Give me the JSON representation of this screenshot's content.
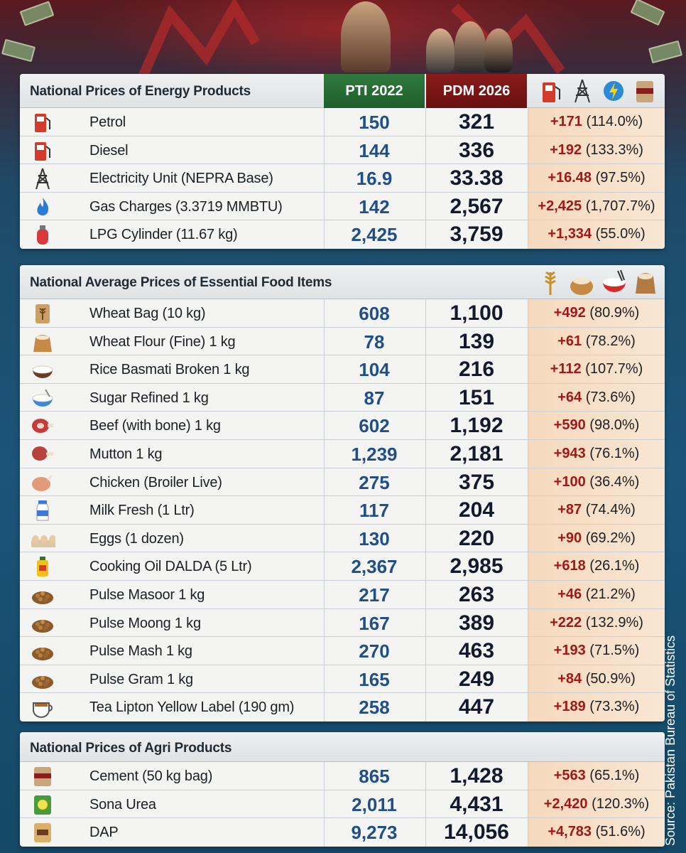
{
  "columns": {
    "pti": "PTI 2022",
    "pdm": "PDM 2026"
  },
  "energy": {
    "title": "National Prices of Energy Products",
    "header_icons": [
      "fuel-pump-icon",
      "power-tower-icon",
      "lightning-icon",
      "cement-bag-icon"
    ],
    "rows": [
      {
        "icon": "fuel-pump-icon",
        "name": "Petrol",
        "v2022": "150",
        "v2026": "321",
        "abs": "+171",
        "pct": "(114.0%)"
      },
      {
        "icon": "fuel-pump-icon",
        "name": "Diesel",
        "v2022": "144",
        "v2026": "336",
        "abs": "+192",
        "pct": "(133.3%)"
      },
      {
        "icon": "power-tower-icon",
        "name": "Electricity Unit (NEPRA Base)",
        "v2022": "16.9",
        "v2026": "33.38",
        "abs": "+16.48",
        "pct": "(97.5%)"
      },
      {
        "icon": "gas-flame-icon",
        "name": "Gas Charges (3.3719 MMBTU)",
        "v2022": "142",
        "v2026": "2,567",
        "abs": "+2,425",
        "pct": "(1,707.7%)"
      },
      {
        "icon": "lpg-cylinder-icon",
        "name": "LPG Cylinder (11.67 kg)",
        "v2022": "2,425",
        "v2026": "3,759",
        "abs": "+1,334",
        "pct": "(55.0%)"
      }
    ]
  },
  "food": {
    "title": "National Average Prices of Essential Food Items",
    "header_icons": [
      "wheat-icon",
      "flour-sack-icon",
      "rice-bowl-icon",
      "grain-sack-icon"
    ],
    "rows": [
      {
        "icon": "wheat-bag-icon",
        "name": "Wheat Bag (10 kg)",
        "v2022": "608",
        "v2026": "1,100",
        "abs": "+492",
        "pct": "(80.9%)"
      },
      {
        "icon": "flour-sack-icon",
        "name": "Wheat Flour (Fine) 1 kg",
        "v2022": "78",
        "v2026": "139",
        "abs": "+61",
        "pct": "(78.2%)"
      },
      {
        "icon": "rice-bowl-icon",
        "name": "Rice Basmati Broken 1 kg",
        "v2022": "104",
        "v2026": "216",
        "abs": "+112",
        "pct": "(107.7%)"
      },
      {
        "icon": "sugar-bowl-icon",
        "name": "Sugar Refined 1 kg",
        "v2022": "87",
        "v2026": "151",
        "abs": "+64",
        "pct": "(73.6%)"
      },
      {
        "icon": "beef-icon",
        "name": "Beef (with bone) 1 kg",
        "v2022": "602",
        "v2026": "1,192",
        "abs": "+590",
        "pct": "(98.0%)"
      },
      {
        "icon": "mutton-icon",
        "name": "Mutton 1 kg",
        "v2022": "1,239",
        "v2026": "2,181",
        "abs": "+943",
        "pct": "(76.1%)"
      },
      {
        "icon": "chicken-icon",
        "name": "Chicken (Broiler Live)",
        "v2022": "275",
        "v2026": "375",
        "abs": "+100",
        "pct": "(36.4%)"
      },
      {
        "icon": "milk-bottle-icon",
        "name": "Milk Fresh (1 Ltr)",
        "v2022": "117",
        "v2026": "204",
        "abs": "+87",
        "pct": "(74.4%)"
      },
      {
        "icon": "eggs-icon",
        "name": "Eggs (1 dozen)",
        "v2022": "130",
        "v2026": "220",
        "abs": "+90",
        "pct": "(69.2%)"
      },
      {
        "icon": "oil-bottle-icon",
        "name": "Cooking Oil DALDA (5 Ltr)",
        "v2022": "2,367",
        "v2026": "2,985",
        "abs": "+618",
        "pct": "(26.1%)"
      },
      {
        "icon": "lentils-icon",
        "name": "Pulse Masoor 1 kg",
        "v2022": "217",
        "v2026": "263",
        "abs": "+46",
        "pct": "(21.2%)"
      },
      {
        "icon": "lentils-icon",
        "name": "Pulse Moong 1 kg",
        "v2022": "167",
        "v2026": "389",
        "abs": "+222",
        "pct": "(132.9%)"
      },
      {
        "icon": "lentils-icon",
        "name": "Pulse Mash 1 kg",
        "v2022": "270",
        "v2026": "463",
        "abs": "+193",
        "pct": "(71.5%)"
      },
      {
        "icon": "lentils-icon",
        "name": "Pulse Gram 1 kg",
        "v2022": "165",
        "v2026": "249",
        "abs": "+84",
        "pct": "(50.9%)"
      },
      {
        "icon": "tea-cup-icon",
        "name": "Tea Lipton Yellow Label (190 gm)",
        "v2022": "258",
        "v2026": "447",
        "abs": "+189",
        "pct": "(73.3%)"
      }
    ]
  },
  "agri": {
    "title": "National Prices of Agri Products",
    "rows": [
      {
        "icon": "cement-bag-icon",
        "name": "Cement (50 kg bag)",
        "v2022": "865",
        "v2026": "1,428",
        "abs": "+563",
        "pct": "(65.1%)"
      },
      {
        "icon": "urea-bag-icon",
        "name": "Sona Urea",
        "v2022": "2,011",
        "v2026": "4,431",
        "abs": "+2,420",
        "pct": "(120.3%)"
      },
      {
        "icon": "dap-bag-icon",
        "name": "DAP",
        "v2022": "9,273",
        "v2026": "14,056",
        "abs": "+4,783",
        "pct": "(51.6%)"
      }
    ]
  },
  "source": "Source: Pakistan Bureau of Statistics",
  "colors": {
    "pti": "#2f7a3c",
    "pdm": "#8a1c1c",
    "increase": "#a01818",
    "value2022": "#1f4f86"
  }
}
